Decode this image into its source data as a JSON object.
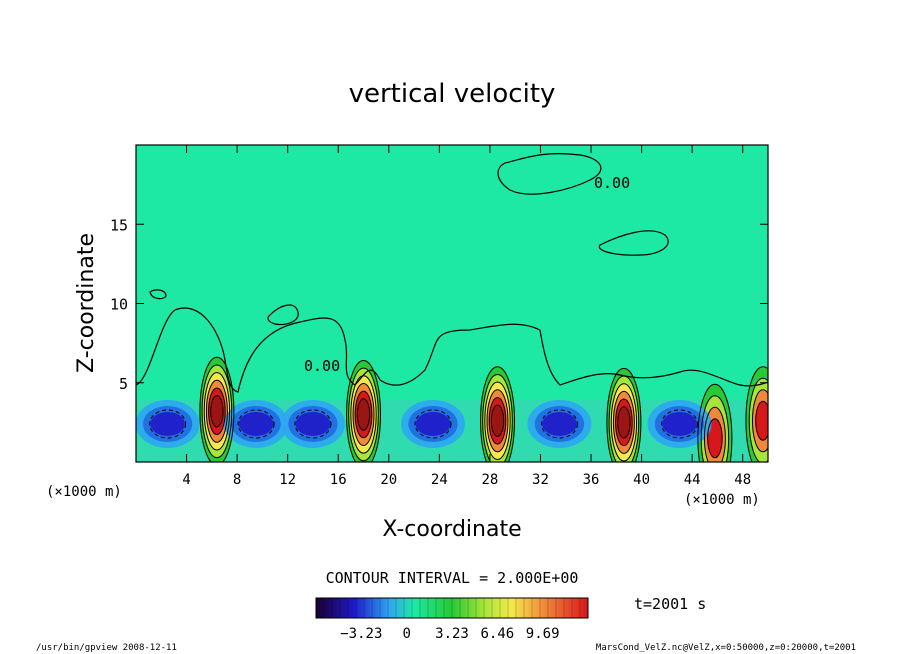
{
  "chart_data": {
    "type": "heatmap",
    "title": "vertical velocity",
    "xlabel": "X-coordinate",
    "ylabel": "Z-coordinate",
    "xunit_left": "(×1000 m)",
    "xunit_right": "(×1000 m)",
    "xlim": [
      0,
      50
    ],
    "ylim": [
      0,
      20
    ],
    "xticks": [
      "4",
      "8",
      "12",
      "16",
      "20",
      "24",
      "28",
      "32",
      "36",
      "40",
      "44",
      "48"
    ],
    "yticks": [
      "5",
      "10",
      "15"
    ],
    "contour_labels": [
      "0.00",
      "0.00"
    ],
    "contour_interval": "CONTOUR INTERVAL = 2.000E+00",
    "time": "t=2001 s",
    "colorbar_ticks": [
      "−3.23",
      "0",
      "3.23",
      "6.46",
      "9.69"
    ],
    "colorbar_range": [
      -6.46,
      12.92
    ],
    "updraft_cores": [
      {
        "x": 6.4,
        "z": 3.2,
        "peak": 12
      },
      {
        "x": 18.0,
        "z": 3.0,
        "peak": 11
      },
      {
        "x": 28.6,
        "z": 2.6,
        "peak": 12
      },
      {
        "x": 38.6,
        "z": 2.5,
        "peak": 11
      },
      {
        "x": 45.8,
        "z": 1.5,
        "peak": 8
      },
      {
        "x": 49.6,
        "z": 2.6,
        "peak": 8
      }
    ],
    "downdraft_cores": [
      {
        "x": 2.5,
        "z": 2.4,
        "peak": -4
      },
      {
        "x": 9.5,
        "z": 2.4,
        "peak": -4
      },
      {
        "x": 14.0,
        "z": 2.4,
        "peak": -3
      },
      {
        "x": 23.5,
        "z": 2.4,
        "peak": -4
      },
      {
        "x": 33.5,
        "z": 2.4,
        "peak": -4
      },
      {
        "x": 43.0,
        "z": 2.4,
        "peak": -4
      }
    ]
  },
  "footer": {
    "left": "/usr/bin/gpview   2008-12-11",
    "right": "MarsCond_VelZ.nc@VelZ,x=0:50000,z=0:20000,t=2001"
  },
  "colors": {
    "background_field": "#1de9a4",
    "negative": "#1c2dd6",
    "positive": "#e8231e",
    "line": "#000000"
  }
}
